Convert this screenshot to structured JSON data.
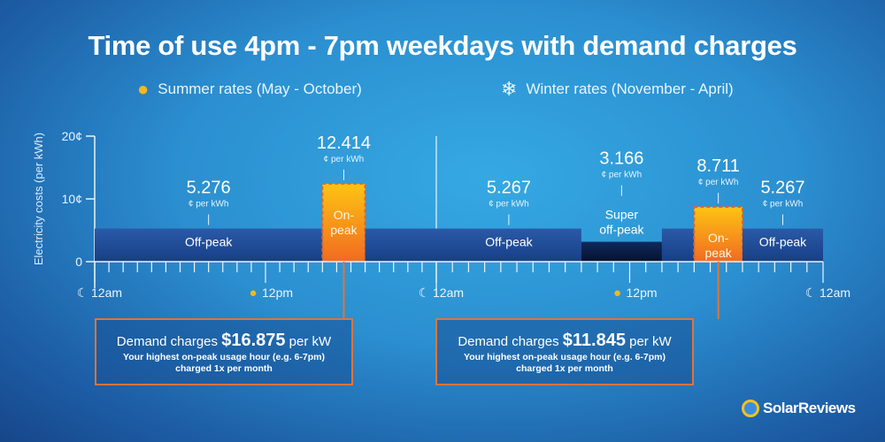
{
  "title": "Time of use 4pm - 7pm weekdays with demand charges",
  "legend": {
    "summer": {
      "icon": "sun-icon",
      "label": "Summer rates (May - October)"
    },
    "winter": {
      "icon": "snowflake-icon",
      "label": "Winter rates (November - April)"
    }
  },
  "chart_data": {
    "type": "bar",
    "title": "Time of use 4pm - 7pm weekdays with demand charges",
    "ylabel": "Electricity costs (per kWh)",
    "ylim": [
      0,
      20
    ],
    "yticks": [
      {
        "value": 0,
        "label": "0"
      },
      {
        "value": 10,
        "label": "10¢"
      },
      {
        "value": 20,
        "label": "20¢"
      }
    ],
    "unit_label": "¢ per kWh",
    "panels": [
      {
        "name": "Summer",
        "xticks": [
          {
            "hour": 0,
            "label": "12am",
            "icon": "moon"
          },
          {
            "hour": 12,
            "label": "12pm",
            "icon": "sun"
          }
        ],
        "segments": [
          {
            "start": 0,
            "end": 16,
            "value": 5.276,
            "label": "Off-peak",
            "rate_label": "5.276",
            "kind": "off"
          },
          {
            "start": 16,
            "end": 19,
            "value": 12.414,
            "label": "On-peak",
            "rate_label": "12.414",
            "kind": "on"
          },
          {
            "start": 19,
            "end": 24,
            "value": 5.276,
            "label": "",
            "rate_label": "",
            "kind": "off"
          }
        ]
      },
      {
        "name": "Winter",
        "xticks": [
          {
            "hour": 0,
            "label": "12am",
            "icon": "moon"
          },
          {
            "hour": 12,
            "label": "12pm",
            "icon": "sun"
          },
          {
            "hour": 24,
            "label": "12am",
            "icon": "moon"
          }
        ],
        "segments": [
          {
            "start": 0,
            "end": 9,
            "value": 5.267,
            "label": "Off-peak",
            "rate_label": "5.267",
            "kind": "off"
          },
          {
            "start": 9,
            "end": 14,
            "value": 3.166,
            "label": "Super off-peak",
            "rate_label": "3.166",
            "kind": "super"
          },
          {
            "start": 14,
            "end": 16,
            "value": 5.267,
            "label": "",
            "rate_label": "",
            "kind": "off"
          },
          {
            "start": 16,
            "end": 19,
            "value": 8.711,
            "label": "On-peak",
            "rate_label": "8.711",
            "kind": "on"
          },
          {
            "start": 19,
            "end": 24,
            "value": 5.267,
            "label": "Off-peak",
            "rate_label": "5.267",
            "kind": "off"
          }
        ]
      }
    ]
  },
  "demand": [
    {
      "prefix": "Demand charges",
      "amount": "$16.875",
      "suffix": "per kW",
      "line2": "Your highest on-peak usage hour (e.g. 6-7pm)",
      "line3": "charged 1x per month"
    },
    {
      "prefix": "Demand charges",
      "amount": "$11.845",
      "suffix": "per kW",
      "line2": "Your highest on-peak usage hour (e.g. 6-7pm)",
      "line3": "charged 1x per month"
    }
  ],
  "brand": "SolarReviews"
}
